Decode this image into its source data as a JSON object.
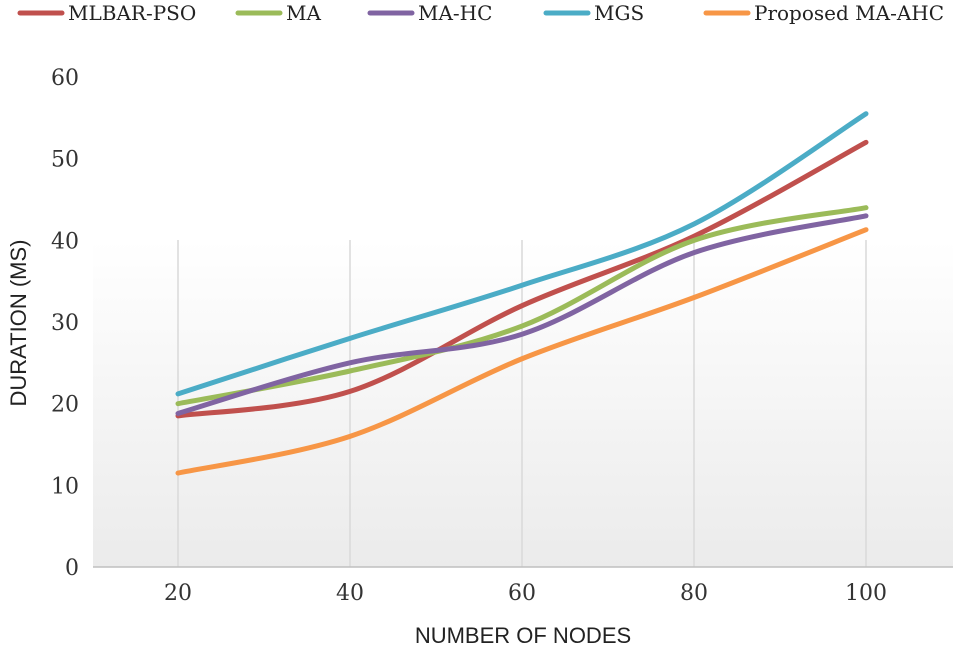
{
  "chart_data": {
    "type": "line",
    "title": "",
    "xlabel": "NUMBER OF NODES",
    "ylabel": "DURATION (MS)",
    "x": [
      20,
      40,
      60,
      80,
      100
    ],
    "x_tick_labels": [
      "20",
      "40",
      "60",
      "80",
      "100"
    ],
    "ylim": [
      0,
      60
    ],
    "y_ticks": [
      0,
      10,
      20,
      30,
      40,
      50,
      60
    ],
    "y_tick_labels": [
      "0",
      "10",
      "20",
      "30",
      "40",
      "50",
      "60"
    ],
    "grid": "vertical",
    "legend_position": "top",
    "series": [
      {
        "name": "MLBAR-PSO",
        "color": "#c0504d",
        "values": [
          18.5,
          21.5,
          32,
          40.5,
          52
        ]
      },
      {
        "name": "MA",
        "color": "#9bbb59",
        "values": [
          20,
          24,
          29.5,
          40,
          44
        ]
      },
      {
        "name": "MA-HC",
        "color": "#8064a2",
        "values": [
          18.8,
          25,
          28.5,
          38.5,
          43
        ]
      },
      {
        "name": "MGS",
        "color": "#4bacc6",
        "values": [
          21.2,
          28,
          34.5,
          42,
          55.5
        ]
      },
      {
        "name": "Proposed MA-AHC",
        "color": "#f79646",
        "values": [
          11.5,
          16,
          25.5,
          33,
          41.3
        ]
      }
    ]
  }
}
